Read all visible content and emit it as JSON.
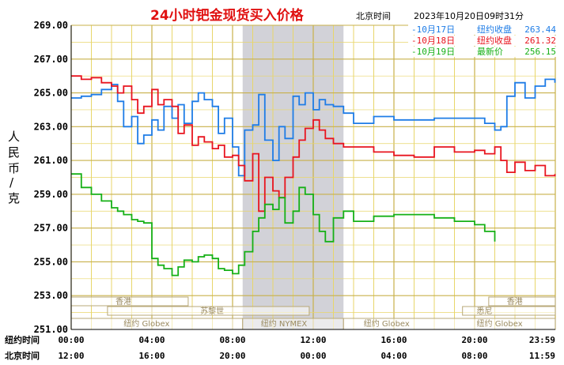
{
  "chart_data": {
    "type": "line",
    "title": "24小时钯金现货买入价格",
    "subtitle_tz": "北京时间",
    "timestamp": "2023年10月20日09时31分",
    "ylabel": "人民币/克",
    "ylim": [
      251.0,
      269.0
    ],
    "yticks": [
      "251.00",
      "253.00",
      "255.00",
      "257.00",
      "259.00",
      "261.00",
      "263.00",
      "265.00",
      "267.00",
      "269.00"
    ],
    "x_row1_label": "纽约时间",
    "x_row2_label": "北京时间",
    "x_ticks_ny": [
      "00:00",
      "04:00",
      "08:00",
      "12:00",
      "16:00",
      "20:00",
      "23:59"
    ],
    "x_ticks_bj": [
      "12:00",
      "16:00",
      "20:00",
      "00:00",
      "04:00",
      "08:00",
      "11:59"
    ],
    "grid": true,
    "legend_position": "top-right",
    "colors": {
      "oct17": "#1e7ce6",
      "oct18": "#e8141e",
      "oct19": "#16b016",
      "grid": "#e8d66a",
      "shade": "#d2d2d8",
      "session": "#b8a878"
    },
    "session_labels": {
      "hongkong": "香港",
      "zurich": "苏黎世",
      "sydney": "悉尼",
      "ny_globex": "纽约 Globex",
      "ny_nymex": "纽约 NYMEX"
    },
    "series": [
      {
        "name": "10月17日",
        "legend_label": "纽约收盘",
        "legend_value": "263.44",
        "color": "#1e7ce6",
        "x": [
          0,
          0.5,
          1,
          1.5,
          2,
          2.3,
          2.6,
          3,
          3.3,
          3.6,
          4,
          4.3,
          4.6,
          5,
          5.3,
          5.6,
          6,
          6.3,
          6.6,
          7,
          7.3,
          7.6,
          8,
          8.3,
          8.6,
          9,
          9.3,
          9.6,
          10,
          10.3,
          10.6,
          11,
          11.3,
          11.6,
          12,
          12.3,
          12.6,
          13,
          13.5,
          14,
          15,
          16,
          17,
          18,
          19,
          20,
          20.5,
          21,
          21.3,
          21.6,
          22,
          22.5,
          23,
          23.5,
          23.98
        ],
        "y": [
          264.7,
          264.8,
          264.9,
          265.2,
          265.5,
          264.5,
          263.0,
          263.6,
          262.0,
          262.5,
          263.4,
          262.8,
          264.2,
          263.5,
          264.3,
          263.2,
          264.5,
          265.0,
          264.6,
          264.2,
          262.6,
          263.5,
          261.8,
          260.1,
          262.8,
          263.1,
          264.9,
          262.2,
          261.0,
          263.0,
          262.3,
          264.8,
          264.3,
          265.0,
          264.0,
          264.6,
          264.3,
          264.2,
          263.8,
          263.2,
          263.6,
          263.4,
          263.4,
          263.5,
          263.5,
          263.5,
          263.2,
          262.8,
          263.0,
          264.8,
          265.6,
          264.7,
          265.4,
          265.8,
          265.6
        ]
      },
      {
        "name": "10月18日",
        "legend_label": "纽约收盘",
        "legend_value": "261.32",
        "color": "#e8141e",
        "x": [
          0,
          0.5,
          1,
          1.5,
          2,
          2.3,
          2.6,
          3,
          3.3,
          3.6,
          4,
          4.3,
          4.6,
          5,
          5.3,
          5.6,
          6,
          6.3,
          6.6,
          7,
          7.3,
          7.6,
          8,
          8.3,
          8.6,
          9,
          9.3,
          9.6,
          10,
          10.3,
          10.6,
          11,
          11.3,
          11.6,
          12,
          12.3,
          12.6,
          13,
          13.5,
          14,
          15,
          16,
          17,
          18,
          19,
          20,
          20.5,
          21,
          21.3,
          21.6,
          22,
          22.5,
          23,
          23.5,
          23.98
        ],
        "y": [
          266.0,
          265.8,
          265.9,
          265.6,
          265.4,
          265.0,
          265.4,
          264.6,
          263.8,
          264.2,
          265.2,
          264.3,
          264.6,
          264.2,
          262.6,
          263.1,
          261.9,
          262.4,
          262.1,
          261.7,
          261.9,
          261.2,
          261.3,
          260.7,
          259.8,
          261.4,
          258.0,
          260.0,
          259.2,
          258.8,
          260.0,
          261.2,
          262.2,
          262.9,
          263.4,
          262.8,
          262.3,
          262.0,
          261.8,
          261.8,
          261.5,
          261.3,
          261.2,
          261.8,
          261.5,
          261.6,
          261.4,
          261.8,
          261.0,
          260.3,
          260.9,
          260.4,
          260.7,
          260.1,
          260.2
        ]
      },
      {
        "name": "10月19日",
        "legend_label": "最新价",
        "legend_value": "256.15",
        "color": "#16b016",
        "x": [
          0,
          0.5,
          1,
          1.5,
          2,
          2.3,
          2.6,
          3,
          3.3,
          3.6,
          4,
          4.3,
          4.6,
          5,
          5.3,
          5.6,
          6,
          6.3,
          6.6,
          7,
          7.3,
          7.6,
          8,
          8.3,
          8.6,
          9,
          9.3,
          9.6,
          10,
          10.3,
          10.6,
          11,
          11.3,
          11.6,
          12,
          12.3,
          12.6,
          13,
          13.5,
          14,
          15,
          16,
          17,
          18,
          19,
          20,
          20.5,
          21
        ],
        "y": [
          260.2,
          259.4,
          259.0,
          258.6,
          258.2,
          258.0,
          257.8,
          257.5,
          257.4,
          257.3,
          255.2,
          254.8,
          254.6,
          254.2,
          254.7,
          255.1,
          255.0,
          255.3,
          255.4,
          255.2,
          254.6,
          254.5,
          254.3,
          254.8,
          255.6,
          256.8,
          257.6,
          258.4,
          258.1,
          258.8,
          257.3,
          258.0,
          259.4,
          259.0,
          257.8,
          256.8,
          256.2,
          257.6,
          258.0,
          257.4,
          257.7,
          257.8,
          257.8,
          257.6,
          257.4,
          257.2,
          256.8,
          256.2
        ]
      }
    ]
  }
}
